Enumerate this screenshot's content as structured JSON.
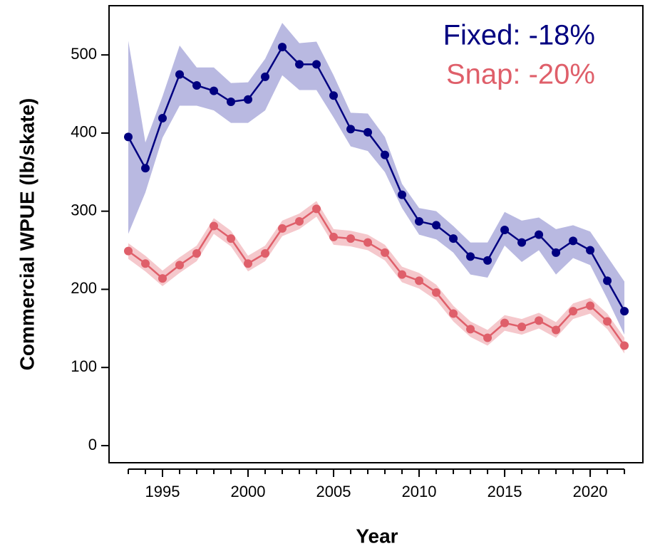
{
  "chart_data": {
    "type": "line",
    "x_label": "Year",
    "y_label": "Commercial WPUE (lb/skate)",
    "x": [
      1993,
      1994,
      1995,
      1996,
      1997,
      1998,
      1999,
      2000,
      2001,
      2002,
      2003,
      2004,
      2005,
      2006,
      2007,
      2008,
      2009,
      2010,
      2011,
      2012,
      2013,
      2014,
      2015,
      2016,
      2017,
      2018,
      2019,
      2020,
      2021,
      2022
    ],
    "series": [
      {
        "name": "Fixed: -18%",
        "color": "#000080",
        "band_color": "#b9b9e1",
        "values": [
          395,
          355,
          419,
          475,
          461,
          454,
          440,
          443,
          472,
          510,
          488,
          488,
          448,
          405,
          401,
          372,
          321,
          287,
          282,
          265,
          242,
          237,
          276,
          260,
          270,
          247,
          262,
          250,
          211,
          172
        ],
        "upper": [
          518,
          388,
          447,
          512,
          484,
          484,
          464,
          465,
          495,
          541,
          515,
          517,
          474,
          426,
          425,
          395,
          335,
          304,
          300,
          281,
          260,
          260,
          299,
          288,
          292,
          277,
          282,
          274,
          242,
          210
        ],
        "lower": [
          271,
          324,
          394,
          435,
          435,
          429,
          413,
          413,
          429,
          474,
          455,
          455,
          420,
          383,
          377,
          350,
          304,
          270,
          264,
          247,
          219,
          215,
          256,
          235,
          250,
          219,
          240,
          231,
          188,
          142
        ]
      },
      {
        "name": "Snap: -20%",
        "color": "#df5f6a",
        "band_color": "#f5c8cc",
        "values": [
          249,
          233,
          214,
          231,
          246,
          281,
          265,
          233,
          246,
          278,
          287,
          303,
          267,
          265,
          260,
          247,
          219,
          211,
          196,
          169,
          149,
          138,
          157,
          152,
          160,
          148,
          172,
          179,
          159,
          128
        ],
        "upper": [
          259,
          243,
          224,
          241,
          256,
          291,
          275,
          243,
          256,
          288,
          297,
          313,
          277,
          275,
          270,
          257,
          229,
          221,
          206,
          179,
          159,
          148,
          167,
          162,
          170,
          158,
          182,
          189,
          169,
          138
        ],
        "lower": [
          239,
          223,
          204,
          221,
          236,
          271,
          255,
          223,
          236,
          268,
          277,
          293,
          257,
          255,
          250,
          237,
          209,
          201,
          186,
          159,
          139,
          128,
          147,
          142,
          150,
          138,
          162,
          169,
          149,
          118
        ]
      }
    ],
    "xlim": [
      1991.875,
      2023.08
    ],
    "ylim": [
      -21.9,
      563
    ],
    "xticks": [
      1995,
      2000,
      2005,
      2010,
      2015,
      2020
    ],
    "xminorticks": [
      1993,
      1994,
      1995,
      1996,
      1997,
      1998,
      1999,
      2000,
      2001,
      2002,
      2003,
      2004,
      2005,
      2006,
      2007,
      2008,
      2009,
      2010,
      2011,
      2012,
      2013,
      2014,
      2015,
      2016,
      2017,
      2018,
      2019,
      2020,
      2021,
      2022
    ],
    "yticks": [
      0,
      100,
      200,
      300,
      400,
      500
    ]
  }
}
